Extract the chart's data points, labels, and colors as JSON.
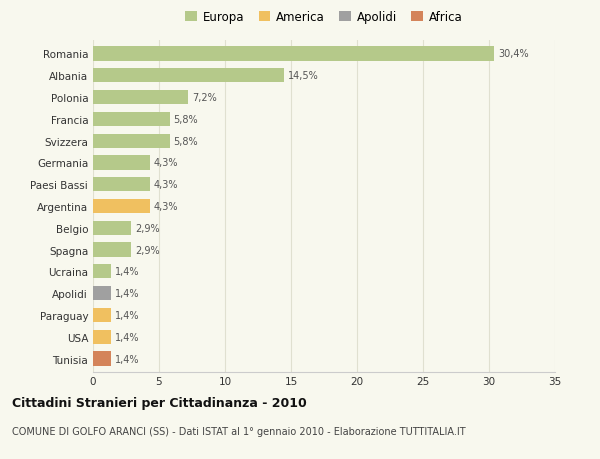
{
  "categories": [
    "Romania",
    "Albania",
    "Polonia",
    "Francia",
    "Svizzera",
    "Germania",
    "Paesi Bassi",
    "Argentina",
    "Belgio",
    "Spagna",
    "Ucraina",
    "Apolidi",
    "Paraguay",
    "USA",
    "Tunisia"
  ],
  "values": [
    30.4,
    14.5,
    7.2,
    5.8,
    5.8,
    4.3,
    4.3,
    4.3,
    2.9,
    2.9,
    1.4,
    1.4,
    1.4,
    1.4,
    1.4
  ],
  "labels": [
    "30,4%",
    "14,5%",
    "7,2%",
    "5,8%",
    "5,8%",
    "4,3%",
    "4,3%",
    "4,3%",
    "2,9%",
    "2,9%",
    "1,4%",
    "1,4%",
    "1,4%",
    "1,4%",
    "1,4%"
  ],
  "colors": [
    "#b5c98a",
    "#b5c98a",
    "#b5c98a",
    "#b5c98a",
    "#b5c98a",
    "#b5c98a",
    "#b5c98a",
    "#f0c060",
    "#b5c98a",
    "#b5c98a",
    "#b5c98a",
    "#a0a0a0",
    "#f0c060",
    "#f0c060",
    "#d4845a"
  ],
  "legend_labels": [
    "Europa",
    "America",
    "Apolidi",
    "Africa"
  ],
  "legend_colors": [
    "#b5c98a",
    "#f0c060",
    "#a0a0a0",
    "#d4845a"
  ],
  "title": "Cittadini Stranieri per Cittadinanza - 2010",
  "subtitle": "COMUNE DI GOLFO ARANCI (SS) - Dati ISTAT al 1° gennaio 2010 - Elaborazione TUTTITALIA.IT",
  "xlim": [
    0,
    35
  ],
  "xticks": [
    0,
    5,
    10,
    15,
    20,
    25,
    30,
    35
  ],
  "bg_color": "#f8f8ee",
  "grid_color": "#e0e0d0"
}
